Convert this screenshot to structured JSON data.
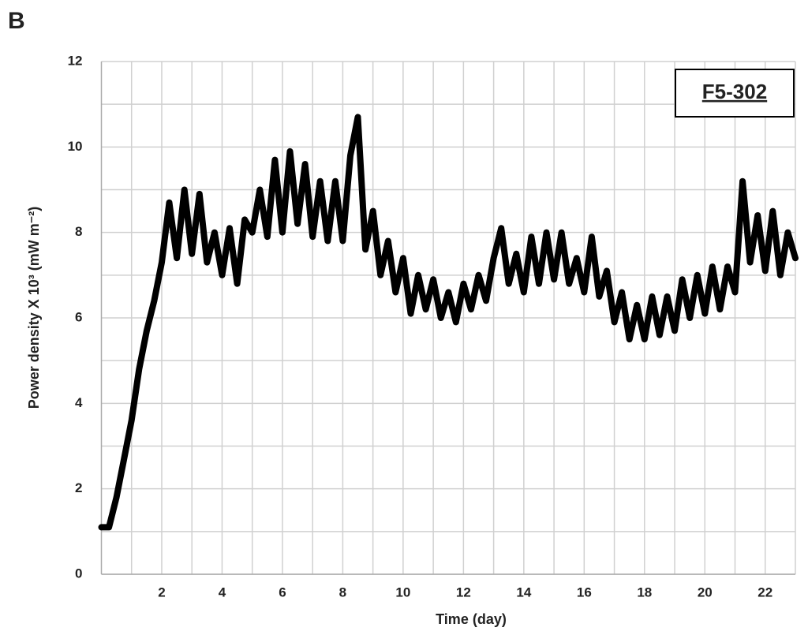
{
  "panel_label": "B",
  "chart_data": {
    "type": "line",
    "annotation": "F5-302",
    "x_label": "Time (day)",
    "y_label": "Power density X 10³ (mW m⁻²)",
    "xlim": [
      0,
      23
    ],
    "ylim": [
      0,
      12
    ],
    "xticks": [
      2,
      4,
      6,
      8,
      10,
      12,
      14,
      16,
      18,
      20,
      22
    ],
    "x_minor_ticks": [
      1,
      3,
      5,
      7,
      9,
      11,
      13,
      15,
      17,
      19,
      21,
      23
    ],
    "yticks": [
      0,
      2,
      4,
      6,
      8,
      10,
      12
    ],
    "y_minor_ticks": [
      1,
      3,
      5,
      7,
      9,
      11
    ],
    "grid": true,
    "series": [
      {
        "color": "#000000",
        "x": [
          0,
          0.25,
          0.5,
          0.75,
          1,
          1.25,
          1.5,
          1.75,
          2,
          2.25,
          2.5,
          2.75,
          3,
          3.25,
          3.5,
          3.75,
          4,
          4.25,
          4.5,
          4.75,
          5,
          5.25,
          5.5,
          5.75,
          6,
          6.25,
          6.5,
          6.75,
          7,
          7.25,
          7.5,
          7.75,
          8,
          8.25,
          8.5,
          8.75,
          9,
          9.25,
          9.5,
          9.75,
          10,
          10.25,
          10.5,
          10.75,
          11,
          11.25,
          11.5,
          11.75,
          12,
          12.25,
          12.5,
          12.75,
          13,
          13.25,
          13.5,
          13.75,
          14,
          14.25,
          14.5,
          14.75,
          15,
          15.25,
          15.5,
          15.75,
          16,
          16.25,
          16.5,
          16.75,
          17,
          17.25,
          17.5,
          17.75,
          18,
          18.25,
          18.5,
          18.75,
          19,
          19.25,
          19.5,
          19.75,
          20,
          20.25,
          20.5,
          20.75,
          21,
          21.25,
          21.5,
          21.75,
          22,
          22.25,
          22.5,
          22.75,
          23
        ],
        "values": [
          1.1,
          1.1,
          1.8,
          2.7,
          3.6,
          4.8,
          5.7,
          6.4,
          7.3,
          8.7,
          7.4,
          9.0,
          7.5,
          8.9,
          7.3,
          8.0,
          7.0,
          8.1,
          6.8,
          8.3,
          8.0,
          9.0,
          7.9,
          9.7,
          8.0,
          9.9,
          8.2,
          9.6,
          7.9,
          9.2,
          7.8,
          9.2,
          7.8,
          9.8,
          10.7,
          7.6,
          8.5,
          7.0,
          7.8,
          6.6,
          7.4,
          6.1,
          7.0,
          6.2,
          6.9,
          6.0,
          6.6,
          5.9,
          6.8,
          6.2,
          7.0,
          6.4,
          7.4,
          8.1,
          6.8,
          7.5,
          6.6,
          7.9,
          6.8,
          8.0,
          6.9,
          8.0,
          6.8,
          7.4,
          6.6,
          7.9,
          6.5,
          7.1,
          5.9,
          6.6,
          5.5,
          6.3,
          5.5,
          6.5,
          5.6,
          6.5,
          5.7,
          6.9,
          6.0,
          7.0,
          6.1,
          7.2,
          6.2,
          7.2,
          6.6,
          9.2,
          7.3,
          8.4,
          7.1,
          8.5,
          7.0,
          8.0,
          7.4
        ]
      }
    ]
  }
}
